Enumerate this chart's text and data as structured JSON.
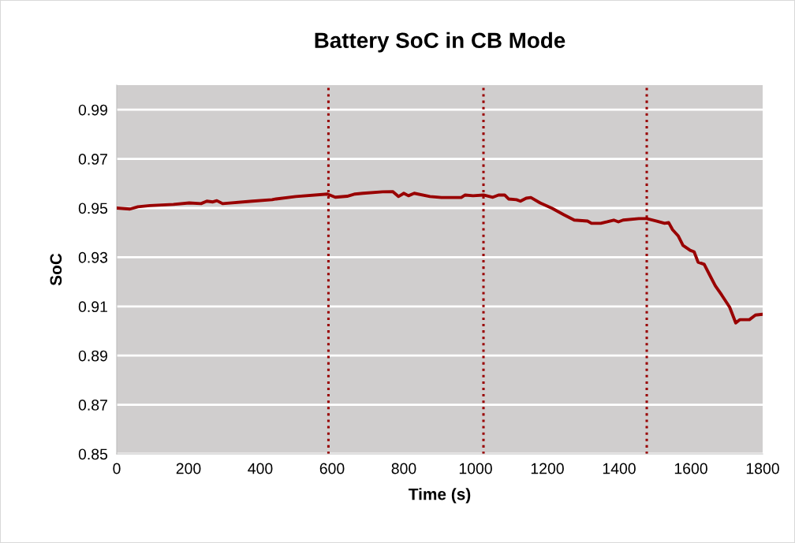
{
  "chart_data": {
    "type": "line",
    "title": "Battery SoC in CB Mode",
    "xlabel": "Time (s)",
    "ylabel": "SoC",
    "xlim": [
      0,
      1800
    ],
    "xticks": [
      0,
      200,
      400,
      600,
      800,
      1000,
      1200,
      1400,
      1600,
      1800
    ],
    "ylim": [
      0.85,
      1.0
    ],
    "yticks": [
      0.85,
      0.87,
      0.89,
      0.91,
      0.93,
      0.95,
      0.97,
      0.99
    ],
    "grid": "y",
    "legend": false,
    "line_style": "solid",
    "marker": "none",
    "series": [
      {
        "color": "#990000",
        "x": [
          0,
          37,
          59,
          92,
          158,
          202,
          235,
          251,
          268,
          279,
          295,
          378,
          433,
          444,
          499,
          587,
          609,
          642,
          664,
          686,
          741,
          769,
          785,
          800,
          813,
          829,
          873,
          905,
          960,
          971,
          993,
          1022,
          1048,
          1064,
          1081,
          1092,
          1114,
          1125,
          1141,
          1154,
          1180,
          1213,
          1246,
          1275,
          1312,
          1323,
          1349,
          1367,
          1385,
          1398,
          1411,
          1455,
          1477,
          1505,
          1527,
          1538,
          1549,
          1565,
          1578,
          1598,
          1609,
          1620,
          1637,
          1653,
          1668,
          1686,
          1708,
          1725,
          1736,
          1763,
          1780,
          1800
        ],
        "values": [
          0.95,
          0.9496,
          0.9505,
          0.951,
          0.9515,
          0.9521,
          0.9518,
          0.9528,
          0.9525,
          0.953,
          0.9518,
          0.9528,
          0.9534,
          0.9537,
          0.9547,
          0.9557,
          0.9544,
          0.9548,
          0.9557,
          0.956,
          0.9566,
          0.9567,
          0.9547,
          0.956,
          0.955,
          0.956,
          0.9547,
          0.9543,
          0.9543,
          0.9553,
          0.955,
          0.9553,
          0.9544,
          0.9553,
          0.9553,
          0.9537,
          0.9534,
          0.9528,
          0.954,
          0.9543,
          0.9521,
          0.9499,
          0.9473,
          0.9451,
          0.9447,
          0.9438,
          0.9438,
          0.9444,
          0.9451,
          0.9444,
          0.9451,
          0.9457,
          0.9457,
          0.9447,
          0.9438,
          0.9441,
          0.9412,
          0.9386,
          0.9348,
          0.9328,
          0.9322,
          0.928,
          0.9271,
          0.9226,
          0.9184,
          0.9146,
          0.9097,
          0.9033,
          0.9046,
          0.9046,
          0.9065,
          0.9068
        ]
      }
    ],
    "ref_lines": [
      {
        "axis": "x",
        "value": 590,
        "color": "#990000",
        "line_style": "dotted"
      },
      {
        "axis": "x",
        "value": 1022,
        "color": "#990000",
        "line_style": "dotted"
      },
      {
        "axis": "x",
        "value": 1477,
        "color": "#990000",
        "line_style": "dotted"
      }
    ]
  }
}
